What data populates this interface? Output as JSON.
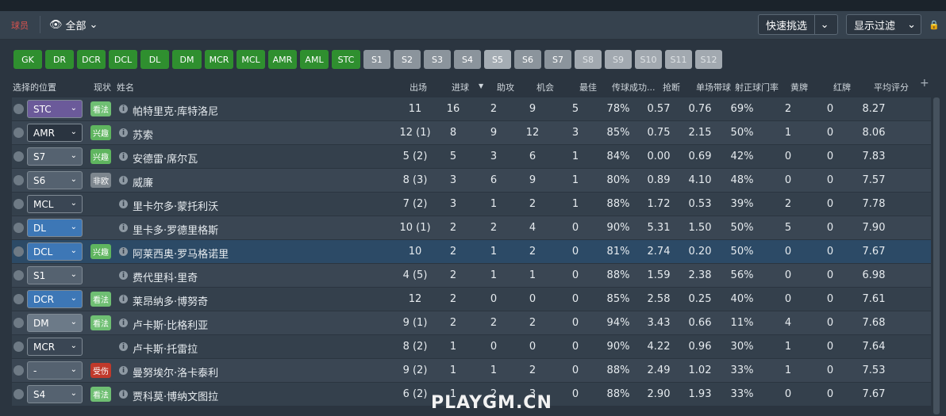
{
  "header": {
    "section_label": "球员",
    "view_label": "全部",
    "quick_pick": "快速挑选",
    "display_filter": "显示过滤"
  },
  "filters": [
    {
      "label": "GK",
      "style": "green",
      "w": 36
    },
    {
      "label": "DR",
      "style": "green",
      "w": 36
    },
    {
      "label": "DCR",
      "style": "green",
      "w": 36
    },
    {
      "label": "DCL",
      "style": "green",
      "w": 36
    },
    {
      "label": "DL",
      "style": "green",
      "w": 36
    },
    {
      "label": "DM",
      "style": "green",
      "w": 37
    },
    {
      "label": "MCR",
      "style": "green",
      "w": 36
    },
    {
      "label": "MCL",
      "style": "green",
      "w": 36
    },
    {
      "label": "AMR",
      "style": "green",
      "w": 36
    },
    {
      "label": "AML",
      "style": "green",
      "w": 36
    },
    {
      "label": "STC",
      "style": "green",
      "w": 36
    },
    {
      "label": "S1",
      "style": "grey",
      "w": 34
    },
    {
      "label": "S2",
      "style": "grey",
      "w": 34
    },
    {
      "label": "S3",
      "style": "grey",
      "w": 34
    },
    {
      "label": "S4",
      "style": "grey",
      "w": 34
    },
    {
      "label": "S5",
      "style": "grey2",
      "w": 34
    },
    {
      "label": "S6",
      "style": "grey",
      "w": 34
    },
    {
      "label": "S7",
      "style": "grey",
      "w": 34
    },
    {
      "label": "S8",
      "style": "dim",
      "w": 34
    },
    {
      "label": "S9",
      "style": "dim",
      "w": 34
    },
    {
      "label": "S10",
      "style": "dim",
      "w": 34
    },
    {
      "label": "S11",
      "style": "dim",
      "w": 34
    },
    {
      "label": "S12",
      "style": "dim",
      "w": 34
    }
  ],
  "columns": {
    "position": "选择的位置",
    "status": "现状",
    "name": "姓名",
    "apps": "出场",
    "goals": "进球",
    "assists": "助攻",
    "chances": "机会",
    "motm": "最佳",
    "pass": "传球成功...",
    "tackles": "抢断",
    "dribbles": "单场带球",
    "shots_on_target": "射正球门率",
    "yellow": "黄牌",
    "red": "红牌",
    "avg_rating": "平均评分"
  },
  "rows": [
    {
      "pos": "STC",
      "pos_color": "#6b5a9a",
      "badge": "看法",
      "badge_color": "#6fbf73",
      "name": "帕特里克·库特洛尼",
      "apps": "11",
      "goals": "16",
      "assists": "2",
      "chances": "9",
      "motm": "5",
      "pass": "78%",
      "tackles": "0.57",
      "dribbles": "0.76",
      "sot": "69%",
      "yellow": "2",
      "red": "0",
      "rating": "8.27"
    },
    {
      "pos": "AMR",
      "pos_color": "#2a3440",
      "badge": "兴趣",
      "badge_color": "#5fb55f",
      "name": "苏索",
      "apps": "12 (1)",
      "goals": "8",
      "assists": "9",
      "chances": "12",
      "motm": "3",
      "pass": "85%",
      "tackles": "0.75",
      "dribbles": "2.15",
      "sot": "50%",
      "yellow": "1",
      "red": "0",
      "rating": "8.06"
    },
    {
      "pos": "S7",
      "pos_color": "#556270",
      "badge": "兴趣",
      "badge_color": "#5fb55f",
      "name": "安德雷·席尔瓦",
      "apps": "5 (2)",
      "goals": "5",
      "assists": "3",
      "chances": "6",
      "motm": "1",
      "pass": "84%",
      "tackles": "0.00",
      "dribbles": "0.69",
      "sot": "42%",
      "yellow": "0",
      "red": "0",
      "rating": "7.83"
    },
    {
      "pos": "S6",
      "pos_color": "#556270",
      "badge": "非欧",
      "badge_color": "#7d868e",
      "name": "威廉",
      "apps": "8 (3)",
      "goals": "3",
      "assists": "6",
      "chances": "9",
      "motm": "1",
      "pass": "80%",
      "tackles": "0.89",
      "dribbles": "4.10",
      "sot": "48%",
      "yellow": "0",
      "red": "0",
      "rating": "7.57"
    },
    {
      "pos": "MCL",
      "pos_color": "#3a4654",
      "badge": "",
      "badge_color": "",
      "name": "里卡尔多·蒙托利沃",
      "apps": "7 (2)",
      "goals": "3",
      "assists": "1",
      "chances": "2",
      "motm": "1",
      "pass": "88%",
      "tackles": "1.72",
      "dribbles": "0.53",
      "sot": "39%",
      "yellow": "2",
      "red": "0",
      "rating": "7.78"
    },
    {
      "pos": "DL",
      "pos_color": "#3d77b6",
      "badge": "",
      "badge_color": "",
      "name": "里卡多·罗德里格斯",
      "apps": "10 (1)",
      "goals": "2",
      "assists": "2",
      "chances": "4",
      "motm": "0",
      "pass": "90%",
      "tackles": "5.31",
      "dribbles": "1.50",
      "sot": "50%",
      "yellow": "5",
      "red": "0",
      "rating": "7.90"
    },
    {
      "pos": "DCL",
      "pos_color": "#3d77b6",
      "badge": "兴趣",
      "badge_color": "#5fb55f",
      "name": "阿莱西奥·罗马格诺里",
      "apps": "10",
      "goals": "2",
      "assists": "1",
      "chances": "2",
      "motm": "0",
      "pass": "81%",
      "tackles": "2.74",
      "dribbles": "0.20",
      "sot": "50%",
      "yellow": "0",
      "red": "0",
      "rating": "7.67",
      "selected": true
    },
    {
      "pos": "S1",
      "pos_color": "#556270",
      "badge": "",
      "badge_color": "",
      "name": "费代里科·里奇",
      "apps": "4 (5)",
      "goals": "2",
      "assists": "1",
      "chances": "1",
      "motm": "0",
      "pass": "88%",
      "tackles": "1.59",
      "dribbles": "2.38",
      "sot": "56%",
      "yellow": "0",
      "red": "0",
      "rating": "6.98"
    },
    {
      "pos": "DCR",
      "pos_color": "#3d77b6",
      "badge": "看法",
      "badge_color": "#6fbf73",
      "name": "莱昂纳多·博努奇",
      "apps": "12",
      "goals": "2",
      "assists": "0",
      "chances": "0",
      "motm": "0",
      "pass": "85%",
      "tackles": "2.58",
      "dribbles": "0.25",
      "sot": "40%",
      "yellow": "0",
      "red": "0",
      "rating": "7.61"
    },
    {
      "pos": "DM",
      "pos_color": "#6c7a88",
      "badge": "看法",
      "badge_color": "#6fbf73",
      "name": "卢卡斯·比格利亚",
      "apps": "9 (1)",
      "goals": "2",
      "assists": "2",
      "chances": "2",
      "motm": "0",
      "pass": "94%",
      "tackles": "3.43",
      "dribbles": "0.66",
      "sot": "11%",
      "yellow": "4",
      "red": "0",
      "rating": "7.68"
    },
    {
      "pos": "MCR",
      "pos_color": "#3a4654",
      "badge": "",
      "badge_color": "",
      "name": "卢卡斯·托雷拉",
      "apps": "8 (2)",
      "goals": "1",
      "assists": "0",
      "chances": "0",
      "motm": "0",
      "pass": "90%",
      "tackles": "4.22",
      "dribbles": "0.96",
      "sot": "30%",
      "yellow": "1",
      "red": "0",
      "rating": "7.64"
    },
    {
      "pos": "-",
      "pos_color": "#556270",
      "badge": "受伤",
      "badge_color": "#c0392b",
      "name": "曼努埃尔·洛卡泰利",
      "apps": "9 (2)",
      "goals": "1",
      "assists": "1",
      "chances": "2",
      "motm": "0",
      "pass": "88%",
      "tackles": "2.49",
      "dribbles": "1.02",
      "sot": "33%",
      "yellow": "1",
      "red": "0",
      "rating": "7.53"
    },
    {
      "pos": "S4",
      "pos_color": "#556270",
      "badge": "看法",
      "badge_color": "#6fbf73",
      "name": "贾科莫·博纳文图拉",
      "apps": "6 (2)",
      "goals": "1",
      "assists": "2",
      "chances": "3",
      "motm": "0",
      "pass": "88%",
      "tackles": "2.90",
      "dribbles": "1.93",
      "sot": "33%",
      "yellow": "0",
      "red": "0",
      "rating": "7.67"
    }
  ],
  "watermark": "PLAYGM.CN"
}
